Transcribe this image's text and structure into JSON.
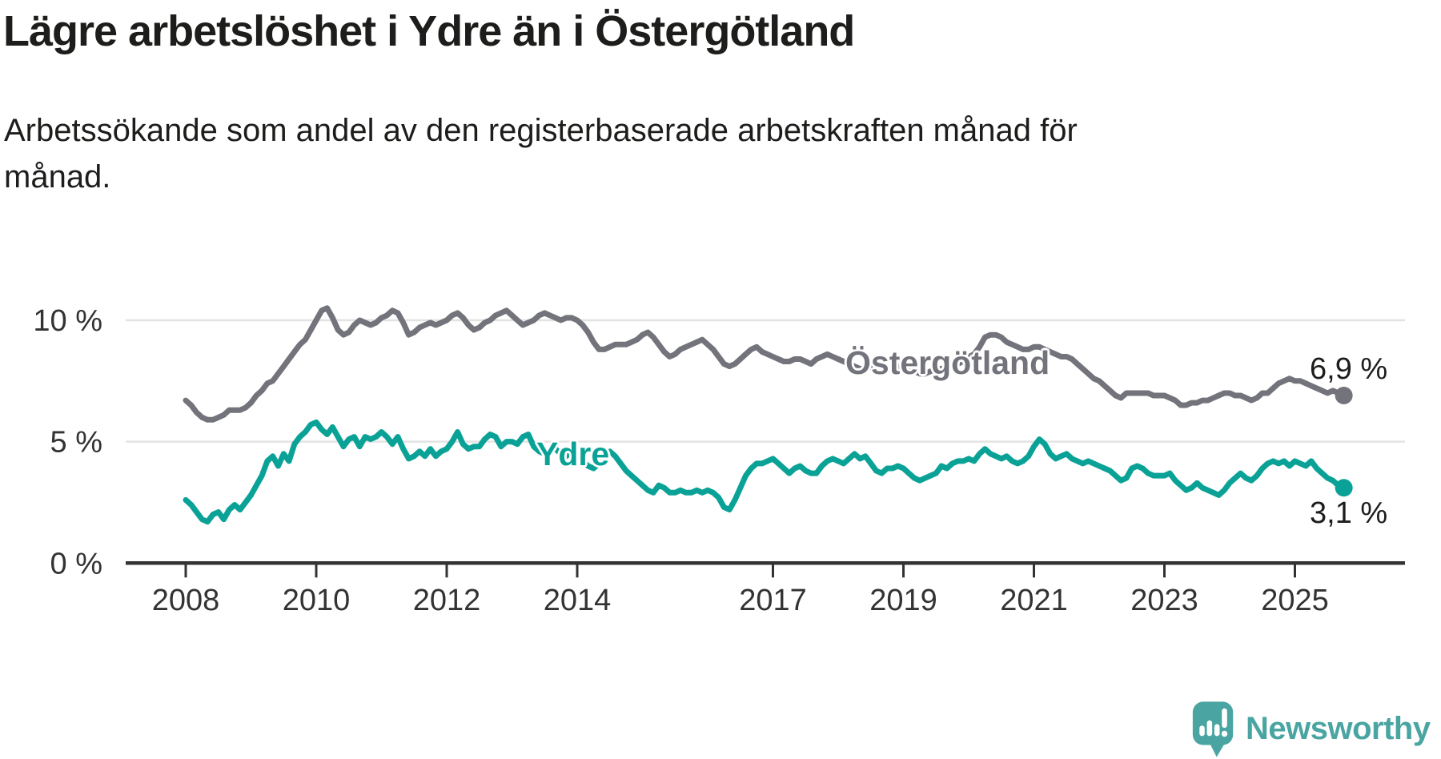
{
  "header": {
    "title": "Lägre arbetslöshet i Ydre än i Östergötland",
    "subtitle": "Arbetssökande som andel av den registerbaserade arbetskraften månad för månad."
  },
  "chart_data": {
    "type": "line",
    "title": "Lägre arbetslöshet i Ydre än i Östergötland",
    "subtitle": "Arbetssökande som andel av den registerbaserade arbetskraften månad för månad.",
    "x_unit": "month",
    "x_start": "2008-01",
    "x_end": "2025-10",
    "ylim": [
      0,
      11.5
    ],
    "grid": "horizontal",
    "legend_position": "inline-labels",
    "yticks": [
      {
        "value": 0,
        "label": "0 %"
      },
      {
        "value": 5,
        "label": "5 %"
      },
      {
        "value": 10,
        "label": "10 %"
      }
    ],
    "xticks": [
      {
        "year": 2008,
        "label": "2008"
      },
      {
        "year": 2010,
        "label": "2010"
      },
      {
        "year": 2012,
        "label": "2012"
      },
      {
        "year": 2014,
        "label": "2014"
      },
      {
        "year": 2017,
        "label": "2017"
      },
      {
        "year": 2019,
        "label": "2019"
      },
      {
        "year": 2021,
        "label": "2021"
      },
      {
        "year": 2023,
        "label": "2023"
      },
      {
        "year": 2025,
        "label": "2025"
      }
    ],
    "series": [
      {
        "name": "Östergötland",
        "color": "#73737c",
        "end_value": 6.9,
        "end_label": "6,9 %",
        "values": [
          6.7,
          6.5,
          6.2,
          6.0,
          5.9,
          5.9,
          6.0,
          6.1,
          6.3,
          6.3,
          6.3,
          6.4,
          6.6,
          6.9,
          7.1,
          7.4,
          7.5,
          7.8,
          8.1,
          8.4,
          8.7,
          9.0,
          9.2,
          9.6,
          10.0,
          10.4,
          10.5,
          10.1,
          9.6,
          9.4,
          9.5,
          9.8,
          10.0,
          9.9,
          9.8,
          9.9,
          10.1,
          10.2,
          10.4,
          10.3,
          9.9,
          9.4,
          9.5,
          9.7,
          9.8,
          9.9,
          9.8,
          9.9,
          10.0,
          10.2,
          10.3,
          10.1,
          9.8,
          9.6,
          9.7,
          9.9,
          10.0,
          10.2,
          10.3,
          10.4,
          10.2,
          10.0,
          9.8,
          9.9,
          10.0,
          10.2,
          10.3,
          10.2,
          10.1,
          10.0,
          10.1,
          10.1,
          10.0,
          9.8,
          9.5,
          9.1,
          8.8,
          8.8,
          8.9,
          9.0,
          9.0,
          9.0,
          9.1,
          9.2,
          9.4,
          9.5,
          9.3,
          9.0,
          8.7,
          8.5,
          8.6,
          8.8,
          8.9,
          9.0,
          9.1,
          9.2,
          9.0,
          8.8,
          8.5,
          8.2,
          8.1,
          8.2,
          8.4,
          8.6,
          8.8,
          8.9,
          8.7,
          8.6,
          8.5,
          8.4,
          8.3,
          8.3,
          8.4,
          8.4,
          8.3,
          8.2,
          8.4,
          8.5,
          8.6,
          8.5,
          8.4,
          8.3,
          8.2,
          8.1,
          8.0,
          8.0,
          8.1,
          8.0,
          7.9,
          8.0,
          8.0,
          8.1,
          8.0,
          7.9,
          7.9,
          7.8,
          7.8,
          7.9,
          8.0,
          8.0,
          8.1,
          8.1,
          8.2,
          8.3,
          8.5,
          8.6,
          8.9,
          9.3,
          9.4,
          9.4,
          9.3,
          9.1,
          9.0,
          8.9,
          8.8,
          8.8,
          8.9,
          8.9,
          8.8,
          8.7,
          8.6,
          8.5,
          8.5,
          8.4,
          8.2,
          8.0,
          7.8,
          7.6,
          7.5,
          7.3,
          7.1,
          6.9,
          6.8,
          7.0,
          7.0,
          7.0,
          7.0,
          7.0,
          6.9,
          6.9,
          6.9,
          6.8,
          6.7,
          6.5,
          6.5,
          6.6,
          6.6,
          6.7,
          6.7,
          6.8,
          6.9,
          7.0,
          7.0,
          6.9,
          6.9,
          6.8,
          6.7,
          6.8,
          7.0,
          7.0,
          7.2,
          7.4,
          7.5,
          7.6,
          7.5,
          7.5,
          7.4,
          7.3,
          7.2,
          7.1,
          7.0,
          7.1,
          7.0,
          6.9
        ]
      },
      {
        "name": "Ydre",
        "color": "#0aa296",
        "end_value": 3.1,
        "end_label": "3,1 %",
        "values": [
          2.6,
          2.4,
          2.1,
          1.8,
          1.7,
          2.0,
          2.1,
          1.8,
          2.2,
          2.4,
          2.2,
          2.5,
          2.8,
          3.2,
          3.6,
          4.2,
          4.4,
          4.0,
          4.5,
          4.2,
          4.9,
          5.2,
          5.4,
          5.7,
          5.8,
          5.5,
          5.3,
          5.6,
          5.2,
          4.8,
          5.1,
          5.2,
          4.8,
          5.2,
          5.1,
          5.2,
          5.4,
          5.2,
          4.9,
          5.2,
          4.7,
          4.3,
          4.4,
          4.6,
          4.4,
          4.7,
          4.4,
          4.6,
          4.7,
          5.0,
          5.4,
          4.9,
          4.7,
          4.8,
          4.8,
          5.1,
          5.3,
          5.2,
          4.8,
          5.0,
          5.0,
          4.9,
          5.2,
          5.3,
          4.8,
          4.6,
          4.5,
          4.6,
          4.7,
          4.5,
          4.4,
          4.6,
          4.4,
          4.2,
          4.0,
          3.9,
          4.1,
          4.3,
          4.6,
          4.4,
          4.1,
          3.8,
          3.6,
          3.4,
          3.2,
          3.0,
          2.9,
          3.2,
          3.1,
          2.9,
          2.9,
          3.0,
          2.9,
          2.9,
          3.0,
          2.9,
          3.0,
          2.9,
          2.7,
          2.3,
          2.2,
          2.6,
          3.1,
          3.6,
          3.9,
          4.1,
          4.1,
          4.2,
          4.3,
          4.1,
          3.9,
          3.7,
          3.9,
          4.0,
          3.8,
          3.7,
          3.7,
          4.0,
          4.2,
          4.3,
          4.2,
          4.1,
          4.3,
          4.5,
          4.3,
          4.4,
          4.1,
          3.8,
          3.7,
          3.9,
          3.9,
          4.0,
          3.9,
          3.7,
          3.5,
          3.4,
          3.5,
          3.6,
          3.7,
          4.0,
          3.9,
          4.1,
          4.2,
          4.2,
          4.3,
          4.2,
          4.5,
          4.7,
          4.5,
          4.4,
          4.3,
          4.4,
          4.2,
          4.1,
          4.2,
          4.4,
          4.8,
          5.1,
          4.9,
          4.5,
          4.3,
          4.4,
          4.5,
          4.3,
          4.2,
          4.1,
          4.2,
          4.1,
          4.0,
          3.9,
          3.8,
          3.6,
          3.4,
          3.5,
          3.9,
          4.0,
          3.9,
          3.7,
          3.6,
          3.6,
          3.6,
          3.7,
          3.4,
          3.2,
          3.0,
          3.1,
          3.3,
          3.1,
          3.0,
          2.9,
          2.8,
          3.0,
          3.3,
          3.5,
          3.7,
          3.5,
          3.4,
          3.6,
          3.9,
          4.1,
          4.2,
          4.1,
          4.2,
          4.0,
          4.2,
          4.1,
          4.0,
          4.2,
          3.9,
          3.7,
          3.5,
          3.4,
          3.2,
          3.1
        ]
      }
    ],
    "style": {
      "gridline_color": "#e3e3e3",
      "axis_color": "#333333",
      "tick_text_color": "#333333",
      "line_width": 7,
      "end_dot_radius": 11
    }
  },
  "branding": {
    "name": "Newsworthy",
    "color": "#4aa5a2",
    "icon": "newsworthy-chart-bubble-icon"
  }
}
